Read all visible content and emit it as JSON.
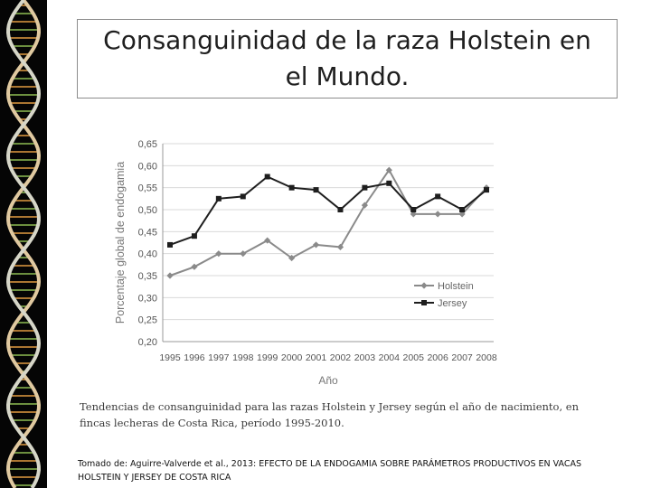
{
  "slide": {
    "title": "Consanguinidad de la raza Holstein en el Mundo.",
    "caption": "Tendencias de consanguinidad para las razas Holstein y Jersey según el año de nacimiento, en fincas lecheras de Costa Rica, período 1995-2010.",
    "source": "Tomado de: Aguirre-Valverde et al., 2013: EFECTO DE LA ENDOGAMIA SOBRE PARÁMETROS PRODUCTIVOS EN VACAS HOLSTEIN Y JERSEY DE COSTA RICA"
  },
  "colors": {
    "holstein": "#8a8a8a",
    "jersey": "#1e1e1e",
    "dna_accent_1": "#c98a3a",
    "dna_accent_2": "#7fa84a"
  },
  "chart_data": {
    "type": "line",
    "title": "",
    "xlabel": "Año",
    "ylabel": "Porcentaje global de endogamia",
    "categories": [
      "1995",
      "1996",
      "1997",
      "1998",
      "1999",
      "2000",
      "2001",
      "2002",
      "2003",
      "2004",
      "2005",
      "2006",
      "2007",
      "2008"
    ],
    "yticks": [
      "0,20",
      "0,25",
      "0,30",
      "0,35",
      "0,40",
      "0,45",
      "0,50",
      "0,55",
      "0,60",
      "0,65"
    ],
    "ylim": [
      0.2,
      0.65
    ],
    "grid": "horizontal",
    "legend": "right",
    "series": [
      {
        "name": "Holstein",
        "marker": "diamond",
        "values": [
          0.35,
          0.37,
          0.4,
          0.4,
          0.43,
          0.39,
          0.42,
          0.415,
          0.51,
          0.59,
          0.49,
          0.49,
          0.49,
          0.55
        ]
      },
      {
        "name": "Jersey",
        "marker": "square",
        "values": [
          0.42,
          0.44,
          0.525,
          0.53,
          0.575,
          0.55,
          0.545,
          0.5,
          0.55,
          0.56,
          0.5,
          0.53,
          0.5,
          0.545
        ]
      }
    ]
  }
}
